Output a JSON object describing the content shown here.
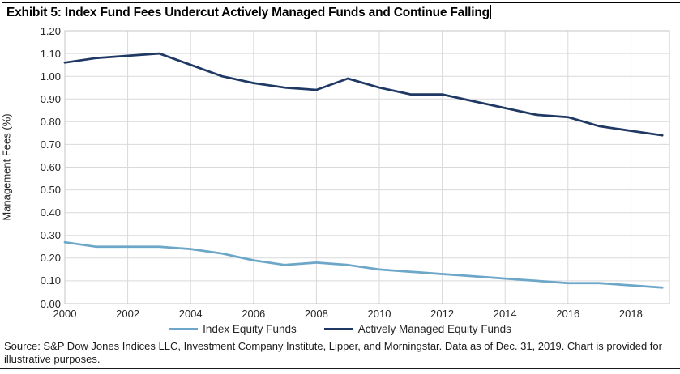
{
  "title": "Exhibit 5: Index Fund Fees Undercut Actively Managed Funds and Continue Falling",
  "chart_data": {
    "type": "line",
    "title": "Exhibit 5: Index Fund Fees Undercut Actively Managed Funds and Continue Falling",
    "xlabel": "",
    "ylabel": "Management Fees (%)",
    "x": [
      2000,
      2001,
      2002,
      2003,
      2004,
      2005,
      2006,
      2007,
      2008,
      2009,
      2010,
      2011,
      2012,
      2013,
      2014,
      2015,
      2016,
      2017,
      2018,
      2019
    ],
    "series": [
      {
        "name": "Index Equity Funds",
        "color": "#6CA6C9",
        "values": [
          0.27,
          0.25,
          0.25,
          0.25,
          0.24,
          0.22,
          0.19,
          0.17,
          0.18,
          0.17,
          0.15,
          0.14,
          0.13,
          0.12,
          0.11,
          0.1,
          0.09,
          0.09,
          0.08,
          0.07
        ]
      },
      {
        "name": "Actively Managed Equity Funds",
        "color": "#1F3864",
        "values": [
          1.06,
          1.08,
          1.09,
          1.1,
          1.05,
          1.0,
          0.97,
          0.95,
          0.94,
          0.99,
          0.95,
          0.92,
          0.92,
          0.89,
          0.86,
          0.83,
          0.82,
          0.78,
          0.76,
          0.74
        ]
      }
    ],
    "ylim": [
      0.0,
      1.2
    ],
    "ytick_step": 0.1,
    "yticks": [
      "0.00",
      "0.10",
      "0.20",
      "0.30",
      "0.40",
      "0.50",
      "0.60",
      "0.70",
      "0.80",
      "0.90",
      "1.00",
      "1.10",
      "1.20"
    ],
    "xticks": [
      2000,
      2002,
      2004,
      2006,
      2008,
      2010,
      2012,
      2014,
      2016,
      2018
    ],
    "grid": true,
    "gridline_color": "#D9D9D9",
    "plot_border_color": "#C6C6C6",
    "legend_position": "bottom"
  },
  "source": "Source: S&P Dow Jones Indices LLC, Investment Company Institute, Lipper, and Morningstar. Data as of Dec. 31, 2019. Chart is provided for illustrative purposes."
}
